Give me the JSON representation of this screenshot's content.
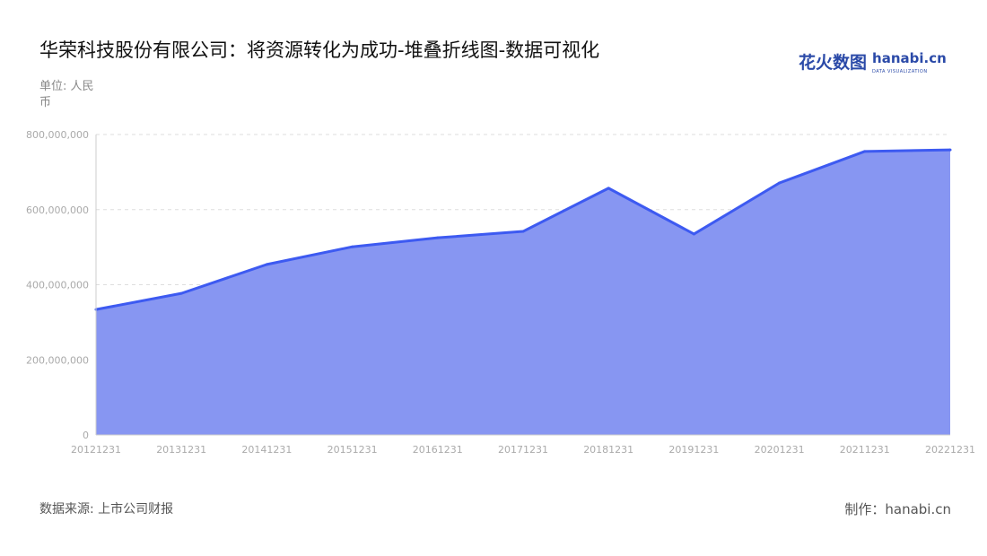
{
  "title": "华荣科技股份有限公司：将资源转化为成功-堆叠折线图-数据可视化",
  "unit_label": "单位: 人民币",
  "logo": {
    "cn": "花火数图",
    "en": "hanabi.cn",
    "tagline": "DATA VISUALIZATION"
  },
  "footer": {
    "source": "数据来源: 上市公司财报",
    "maker": "制作：hanabi.cn"
  },
  "colors": {
    "line": "#3d5af1",
    "area": "#8796f2"
  },
  "chart_data": {
    "type": "area",
    "title": "华荣科技股份有限公司：将资源转化为成功-堆叠折线图-数据可视化",
    "ylabel": "单位: 人民币",
    "categories": [
      "20121231",
      "20131231",
      "20141231",
      "20151231",
      "20161231",
      "20171231",
      "20181231",
      "20191231",
      "20201231",
      "20211231",
      "20221231"
    ],
    "series": [
      {
        "values": [
          334000000,
          377000000,
          454000000,
          501000000,
          525000000,
          542000000,
          657000000,
          535000000,
          671000000,
          755000000,
          759000000
        ]
      }
    ],
    "ylim": [
      0,
      800000000
    ],
    "yticks": [
      0,
      200000000,
      400000000,
      600000000,
      800000000
    ],
    "ytick_labels": [
      "0",
      "200,000,000",
      "400,000,000",
      "600,000,000",
      "800,000,000"
    ],
    "grid": true,
    "legend": "none"
  }
}
